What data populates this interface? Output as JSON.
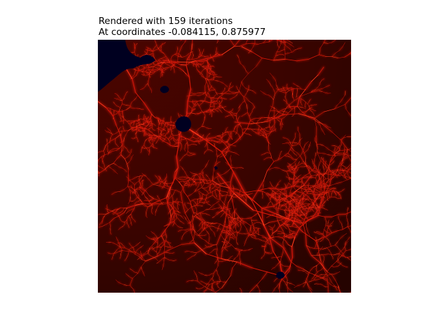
{
  "title": {
    "line1": "Rendered with 159 iterations",
    "line2": "At coordinates -0.084115, 0.875977"
  },
  "render": {
    "iterations": 159,
    "center": [
      -0.084115,
      0.875977
    ],
    "colors": {
      "background_dark": "#250300",
      "background_bright": "#4a0500",
      "filament": "#d71808",
      "filament_core": "#ff3a1a",
      "interior": "#000020"
    }
  }
}
